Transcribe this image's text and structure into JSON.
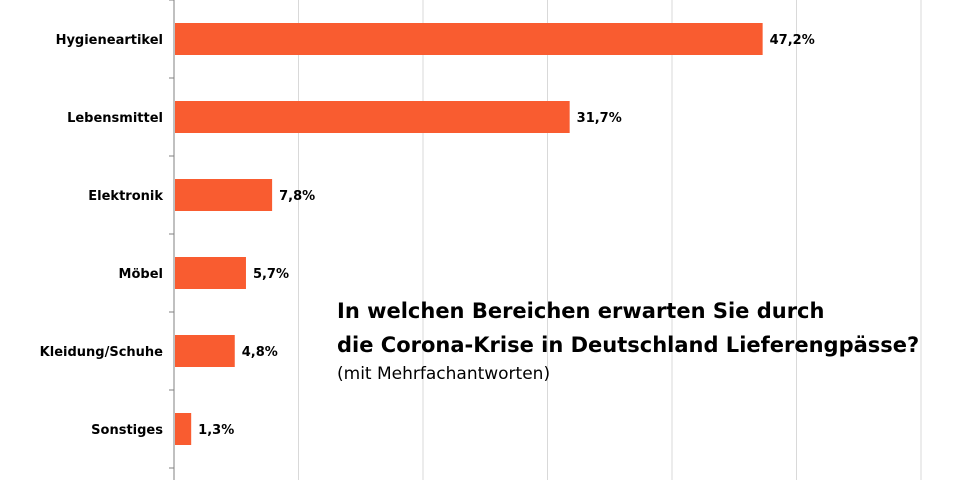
{
  "chart_data": {
    "type": "bar",
    "orientation": "horizontal",
    "categories": [
      "Hygieneartikel",
      "Lebensmittel",
      "Elektronik",
      "Möbel",
      "Kleidung/Schuhe",
      "Sonstiges"
    ],
    "values": [
      47.2,
      31.7,
      7.8,
      5.7,
      4.8,
      1.3
    ],
    "value_labels": [
      "47,2%",
      "31,7%",
      "7,8%",
      "5,7%",
      "4,8%",
      "1,3%"
    ],
    "title_lines": [
      "In welchen Bereichen erwarten Sie durch",
      "die Corona-Krise in Deutschland Lieferengpässe?"
    ],
    "subtitle": "(mit Mehrfachantworten)",
    "xlim": [
      0,
      60
    ],
    "xlabel": "",
    "ylabel": "",
    "grid": true,
    "bar_color": "#F95C30",
    "grid_color": "#D9D9D9"
  }
}
